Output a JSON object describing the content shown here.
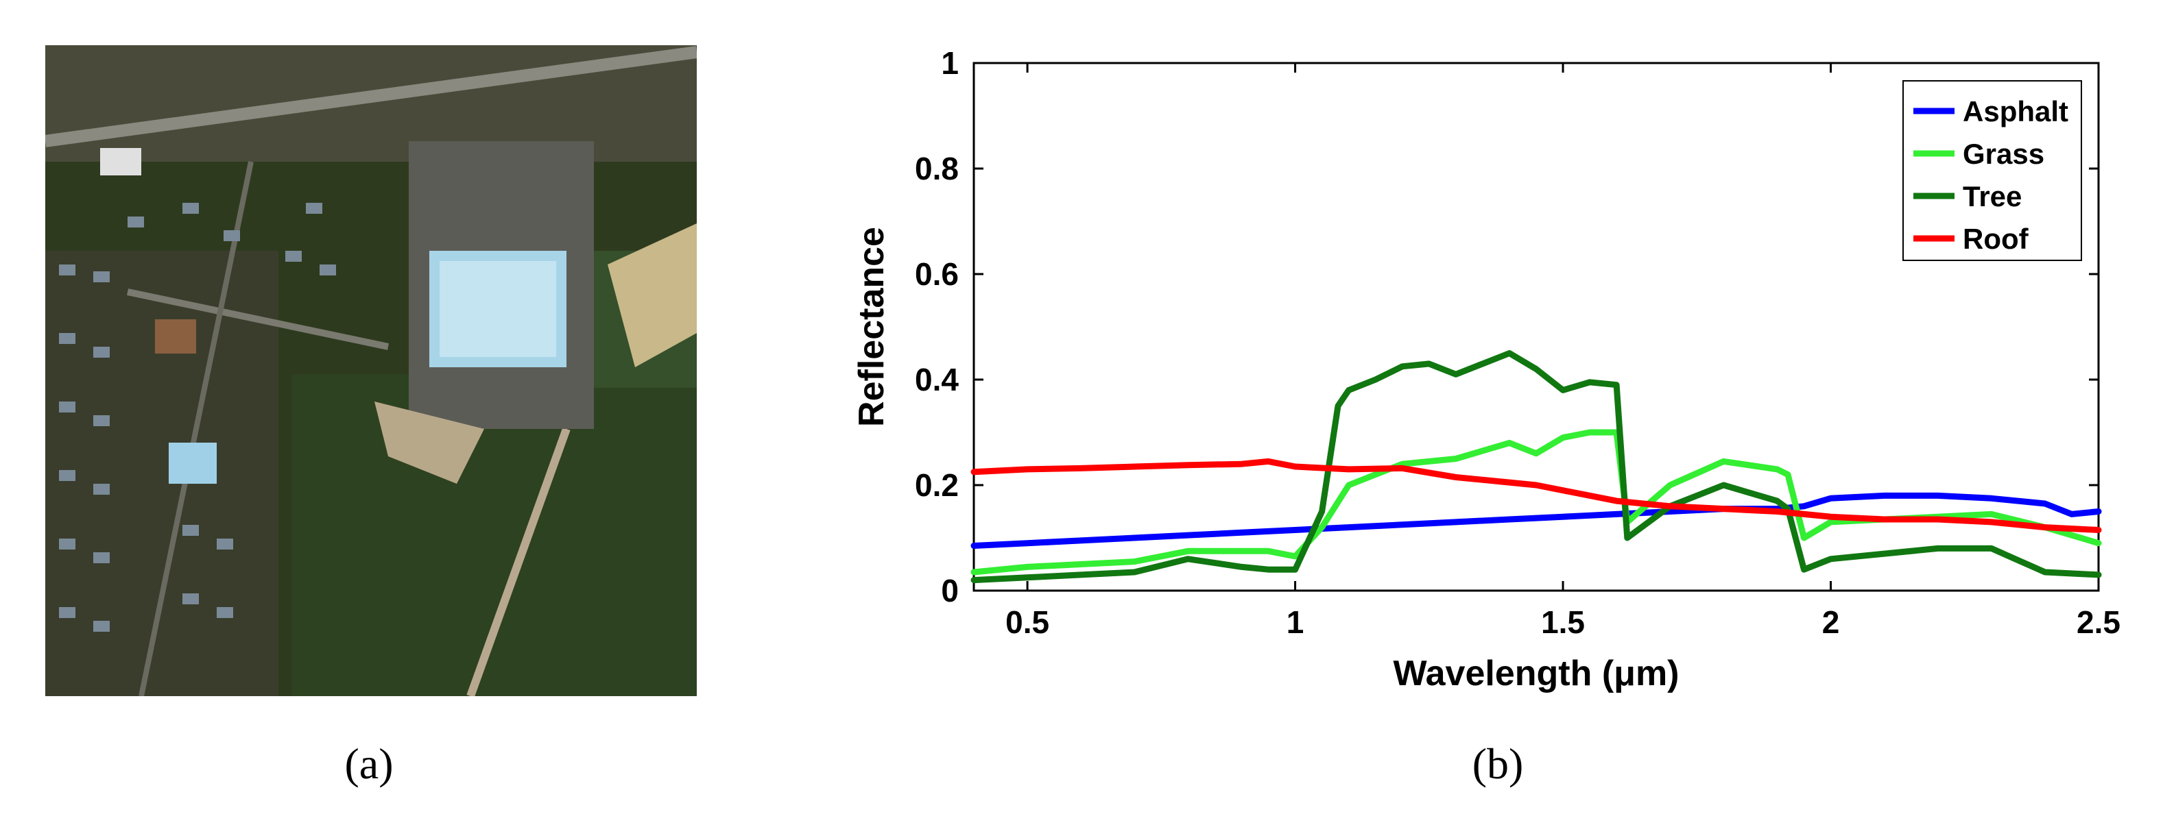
{
  "captions": {
    "a": "(a)",
    "b": "(b)"
  },
  "panel_a": {
    "description_icon": "aerial-image-icon"
  },
  "chart_data": {
    "type": "line",
    "title": "",
    "xlabel": "Wavelength (μm)",
    "ylabel": "Reflectance",
    "xlim": [
      0.4,
      2.5
    ],
    "ylim": [
      0,
      1
    ],
    "xticks": [
      0.5,
      1,
      1.5,
      2,
      2.5
    ],
    "xtick_labels": [
      "0.5",
      "1",
      "1.5",
      "2",
      "2.5"
    ],
    "yticks": [
      0,
      0.2,
      0.4,
      0.6,
      0.8,
      1
    ],
    "ytick_labels": [
      "0",
      "0.2",
      "0.4",
      "0.6",
      "0.8",
      "1"
    ],
    "legend_position": "top-right",
    "series": [
      {
        "name": "Asphalt",
        "color": "#0000ff",
        "x": [
          0.4,
          0.5,
          0.6,
          0.7,
          0.8,
          0.9,
          1.0,
          1.1,
          1.2,
          1.3,
          1.4,
          1.5,
          1.6,
          1.7,
          1.8,
          1.9,
          1.95,
          2.0,
          2.1,
          2.2,
          2.3,
          2.4,
          2.45,
          2.5
        ],
        "values": [
          0.085,
          0.09,
          0.095,
          0.1,
          0.105,
          0.11,
          0.115,
          0.12,
          0.125,
          0.13,
          0.135,
          0.14,
          0.145,
          0.15,
          0.155,
          0.155,
          0.16,
          0.175,
          0.18,
          0.18,
          0.175,
          0.165,
          0.145,
          0.15
        ]
      },
      {
        "name": "Grass",
        "color": "#33ee33",
        "x": [
          0.4,
          0.5,
          0.6,
          0.7,
          0.8,
          0.9,
          0.95,
          1.0,
          1.05,
          1.1,
          1.15,
          1.2,
          1.3,
          1.4,
          1.45,
          1.5,
          1.55,
          1.6,
          1.62,
          1.7,
          1.8,
          1.9,
          1.92,
          1.95,
          2.0,
          2.1,
          2.2,
          2.3,
          2.4,
          2.5
        ],
        "values": [
          0.035,
          0.045,
          0.05,
          0.055,
          0.075,
          0.075,
          0.075,
          0.065,
          0.12,
          0.2,
          0.22,
          0.24,
          0.25,
          0.28,
          0.26,
          0.29,
          0.3,
          0.3,
          0.13,
          0.2,
          0.245,
          0.23,
          0.22,
          0.1,
          0.13,
          0.135,
          0.14,
          0.145,
          0.12,
          0.09
        ]
      },
      {
        "name": "Tree",
        "color": "#117711",
        "x": [
          0.4,
          0.5,
          0.6,
          0.7,
          0.8,
          0.9,
          0.95,
          1.0,
          1.05,
          1.08,
          1.1,
          1.15,
          1.2,
          1.25,
          1.3,
          1.35,
          1.4,
          1.45,
          1.5,
          1.55,
          1.6,
          1.62,
          1.7,
          1.8,
          1.9,
          1.92,
          1.95,
          2.0,
          2.1,
          2.2,
          2.3,
          2.4,
          2.5
        ],
        "values": [
          0.02,
          0.025,
          0.03,
          0.035,
          0.06,
          0.045,
          0.04,
          0.04,
          0.15,
          0.35,
          0.38,
          0.4,
          0.425,
          0.43,
          0.41,
          0.43,
          0.45,
          0.42,
          0.38,
          0.395,
          0.39,
          0.1,
          0.16,
          0.2,
          0.17,
          0.155,
          0.04,
          0.06,
          0.07,
          0.08,
          0.08,
          0.035,
          0.03
        ]
      },
      {
        "name": "Roof",
        "color": "#ff0000",
        "x": [
          0.4,
          0.5,
          0.6,
          0.7,
          0.8,
          0.9,
          0.95,
          1.0,
          1.1,
          1.2,
          1.3,
          1.4,
          1.45,
          1.5,
          1.6,
          1.7,
          1.8,
          1.9,
          2.0,
          2.1,
          2.2,
          2.3,
          2.4,
          2.5
        ],
        "values": [
          0.225,
          0.23,
          0.232,
          0.235,
          0.238,
          0.24,
          0.245,
          0.235,
          0.23,
          0.232,
          0.215,
          0.205,
          0.2,
          0.19,
          0.17,
          0.16,
          0.155,
          0.15,
          0.14,
          0.135,
          0.135,
          0.13,
          0.12,
          0.115
        ]
      }
    ]
  }
}
